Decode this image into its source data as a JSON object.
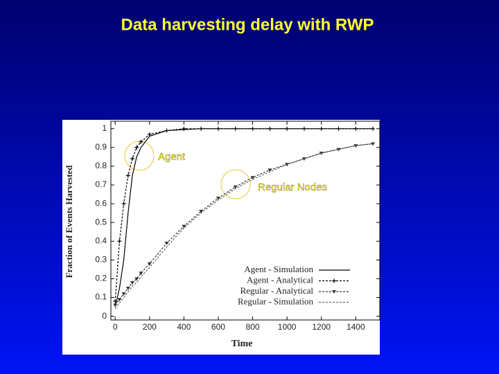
{
  "chart_data": {
    "type": "line",
    "title": "Data harvesting delay with RWP",
    "x_label": "Time",
    "y_label": "Fraction of Events Harvested",
    "annotations": [
      {
        "text": "Agent"
      },
      {
        "text": "Regular Nodes"
      }
    ],
    "x": [
      0,
      25,
      50,
      75,
      100,
      125,
      150,
      200,
      300,
      400,
      500,
      600,
      700,
      800,
      900,
      1000,
      1100,
      1200,
      1300,
      1400,
      1500
    ],
    "series": [
      {
        "name": "Agent - Simulation",
        "color": "#000000",
        "dash": false,
        "marker": null,
        "values": [
          0.05,
          0.15,
          0.3,
          0.55,
          0.75,
          0.85,
          0.9,
          0.96,
          0.99,
          0.995,
          1,
          1,
          1,
          1,
          1,
          1,
          1,
          1,
          1,
          1,
          1
        ]
      },
      {
        "name": "Agent - Analytical",
        "color": "#000000",
        "dash": true,
        "marker": "plus",
        "values": [
          0.08,
          0.4,
          0.6,
          0.75,
          0.84,
          0.9,
          0.93,
          0.97,
          0.99,
          1,
          1,
          1,
          1,
          1,
          1,
          1,
          1,
          1,
          1,
          1,
          1
        ]
      },
      {
        "name": "Regular - Analytical",
        "color": "#333333",
        "dash": true,
        "marker": "triangle",
        "values": [
          0.06,
          0.09,
          0.12,
          0.15,
          0.18,
          0.2,
          0.23,
          0.28,
          0.39,
          0.48,
          0.56,
          0.63,
          0.69,
          0.74,
          0.78,
          0.81,
          0.84,
          0.87,
          0.89,
          0.91,
          0.92
        ]
      },
      {
        "name": "Regular - Simulation",
        "color": "#666666",
        "dash": true,
        "marker": null,
        "values": [
          0.04,
          0.07,
          0.1,
          0.13,
          0.16,
          0.18,
          0.21,
          0.26,
          0.37,
          0.47,
          0.55,
          0.62,
          0.68,
          0.73,
          0.77,
          0.81,
          0.84,
          0.87,
          0.89,
          0.91,
          0.92
        ]
      }
    ],
    "xlim": [
      -25,
      1540
    ],
    "ylim": [
      -0.02,
      1.04
    ],
    "xticks": [
      0,
      200,
      400,
      600,
      800,
      1000,
      1200,
      1400
    ],
    "yticks": [
      0,
      0.1,
      0.2,
      0.3,
      0.4,
      0.5,
      0.6,
      0.7,
      0.8,
      0.9,
      1
    ],
    "legend": "lower right"
  }
}
